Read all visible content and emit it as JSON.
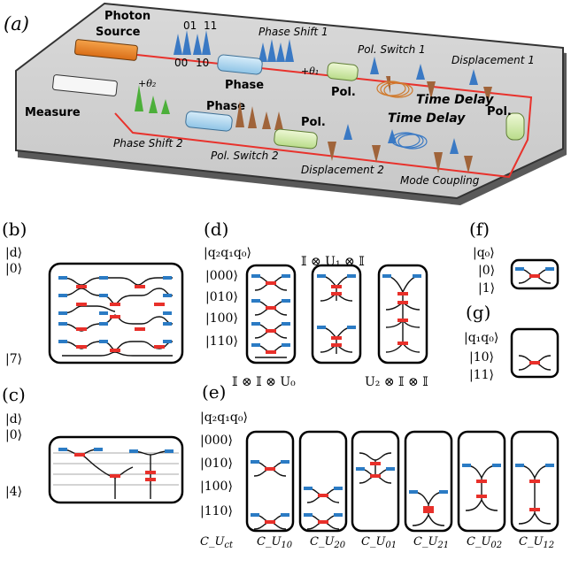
{
  "panel_a": {
    "label": "(a)",
    "photon_source": [
      "Photon",
      "Source"
    ],
    "measure": "Measure",
    "bits": [
      "01",
      "11",
      "00",
      "10"
    ],
    "phase_shift_1": "Phase Shift 1",
    "pol_switch_1": "Pol. Switch 1",
    "displacement_1": "Displacement 1",
    "phase_shift_2": "Phase Shift 2",
    "pol_switch_2": "Pol. Switch 2",
    "displacement_2": "Displacement 2",
    "mode_coupling": "Mode Coupling",
    "time_delay": "Time Delay",
    "phase": "Phase",
    "pol": "Pol.",
    "theta1": "+θ₁",
    "theta2": "+θ₂"
  },
  "panel_b": {
    "label": "(b)",
    "ket_d": "|d⟩",
    "ket_0": "|0⟩",
    "ket_7": "|7⟩"
  },
  "panel_c": {
    "label": "(c)",
    "ket_d": "|d⟩",
    "ket_0": "|0⟩",
    "ket_4": "|4⟩"
  },
  "panel_d": {
    "label": "(d)",
    "header": "|q₂q₁q₀⟩",
    "states": [
      "|000⟩",
      "|010⟩",
      "|100⟩",
      "|110⟩"
    ],
    "op_top": "𝕀 ⊗ U₁ ⊗ 𝕀",
    "op_left": "𝕀 ⊗ 𝕀 ⊗ U₀",
    "op_right": "U₂ ⊗ 𝕀 ⊗ 𝕀"
  },
  "panel_e": {
    "label": "(e)",
    "header": "|q₂q₁q₀⟩",
    "states": [
      "|000⟩",
      "|010⟩",
      "|100⟩",
      "|110⟩"
    ],
    "ops": [
      "C_U",
      "C_U",
      "C_U",
      "C_U",
      "C_U",
      "C_U",
      "C_U"
    ],
    "subs": [
      "ct",
      "10",
      "20",
      "01",
      "21",
      "02",
      "12"
    ]
  },
  "panel_f": {
    "label": "(f)",
    "header": "|q₀⟩",
    "states": [
      "|0⟩",
      "|1⟩"
    ]
  },
  "panel_g": {
    "label": "(g)",
    "header": "|q₁q₀⟩",
    "states": [
      "|10⟩",
      "|11⟩"
    ]
  },
  "colors": {
    "laser": "#e8322c",
    "waveguide": "#111111",
    "grating": "#2b7bc4",
    "cross": "#e8302a",
    "source": "#e8862e"
  }
}
